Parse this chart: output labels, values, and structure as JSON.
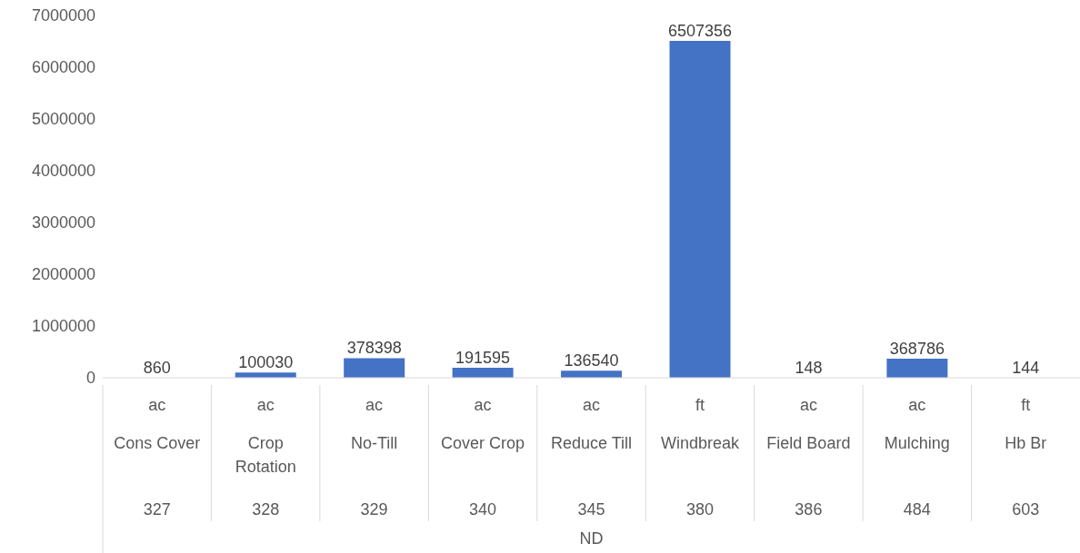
{
  "chart_data": {
    "type": "bar",
    "categories": [
      "ac\nCons Cover\n327",
      "ac\nCrop Rotation\n328",
      "ac\nNo-Till\n329",
      "ac\nCover  Crop\n340",
      "ac\nReduce Till\n345",
      "ft\nWindbreak\n380",
      "ac\nField Board\n386",
      "ac\nMulching\n484",
      "ft\nHb Br\n603"
    ],
    "values": [
      860,
      100030,
      378398,
      191595,
      136540,
      6507356,
      148,
      368786,
      144
    ],
    "color": "#4472c4",
    "annotations": [
      "ND"
    ],
    "ylim": [
      0,
      7000000
    ],
    "yticks": [
      0,
      1000000,
      2000000,
      3000000,
      4000000,
      5000000,
      6000000,
      7000000
    ],
    "data_labels": true
  }
}
